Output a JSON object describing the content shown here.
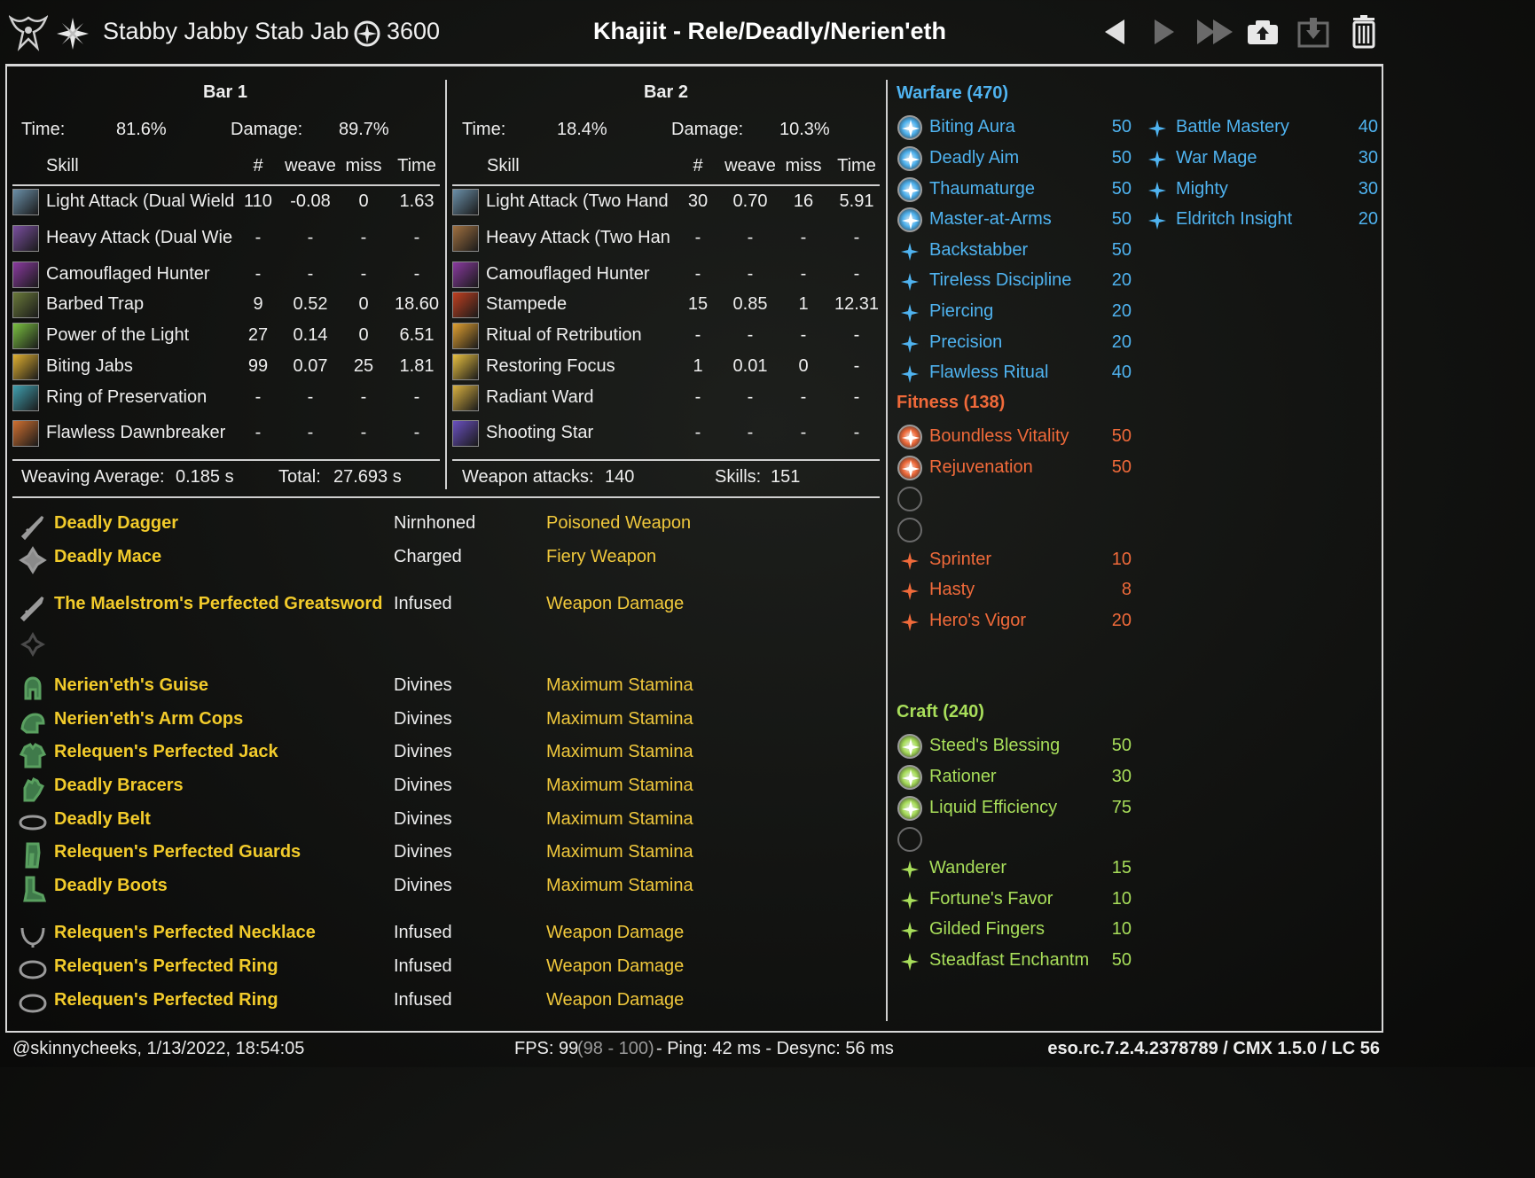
{
  "header": {
    "character_name": "Stabby Jabby Stab Jab",
    "champion_points": "3600",
    "build_title": "Khajiit - Rele/Deadly/Nerien'eth"
  },
  "colors": {
    "warfare": "#4fb3f0",
    "fitness": "#f06a3a",
    "craft": "#a8de5a",
    "gear_name": "#f2cb2b"
  },
  "bars": [
    {
      "title": "Bar 1",
      "time_label": "Time:",
      "time_value": "81.6%",
      "damage_label": "Damage:",
      "damage_value": "89.7%",
      "columns": [
        "Skill",
        "#",
        "weave",
        "miss",
        "Time"
      ],
      "skills": [
        {
          "name": "Light Attack (Dual Wield",
          "count": "110",
          "weave": "-0.08",
          "miss": "0",
          "time": "1.63",
          "icon": "dagger-icon",
          "color": "#6a8fa8"
        },
        {
          "name": "Heavy Attack (Dual Wie",
          "count": "-",
          "weave": "-",
          "miss": "-",
          "time": "-",
          "icon": "heavy-dual-icon",
          "color": "#7a4fa0"
        },
        {
          "name": "Camouflaged Hunter",
          "count": "-",
          "weave": "-",
          "miss": "-",
          "time": "-",
          "icon": "hunter-icon",
          "color": "#8a3aa0"
        },
        {
          "name": "Barbed Trap",
          "count": "9",
          "weave": "0.52",
          "miss": "0",
          "time": "18.60",
          "icon": "trap-icon",
          "color": "#6a7a3a"
        },
        {
          "name": "Power of the Light",
          "count": "27",
          "weave": "0.14",
          "miss": "0",
          "time": "6.51",
          "icon": "light-icon",
          "color": "#7ac040"
        },
        {
          "name": "Biting Jabs",
          "count": "99",
          "weave": "0.07",
          "miss": "25",
          "time": "1.81",
          "icon": "jabs-icon",
          "color": "#e0b030"
        },
        {
          "name": "Ring of Preservation",
          "count": "-",
          "weave": "-",
          "miss": "-",
          "time": "-",
          "icon": "ring-icon",
          "color": "#40a0b0"
        },
        {
          "name": "Flawless Dawnbreaker",
          "count": "-",
          "weave": "-",
          "miss": "-",
          "time": "-",
          "icon": "dawnbreaker-icon",
          "color": "#d07030"
        }
      ],
      "summary_left_label": "Weaving Average:",
      "summary_left_value": "0.185 s",
      "summary_right_label": "Total:",
      "summary_right_value": "27.693 s"
    },
    {
      "title": "Bar 2",
      "time_label": "Time:",
      "time_value": "18.4%",
      "damage_label": "Damage:",
      "damage_value": "10.3%",
      "columns": [
        "Skill",
        "#",
        "weave",
        "miss",
        "Time"
      ],
      "skills": [
        {
          "name": "Light Attack (Two Hand",
          "count": "30",
          "weave": "0.70",
          "miss": "16",
          "time": "5.91",
          "icon": "sword-icon",
          "color": "#6a8fa8"
        },
        {
          "name": "Heavy Attack (Two Han",
          "count": "-",
          "weave": "-",
          "miss": "-",
          "time": "-",
          "icon": "heavy-two-icon",
          "color": "#a07040"
        },
        {
          "name": "Camouflaged Hunter",
          "count": "-",
          "weave": "-",
          "miss": "-",
          "time": "-",
          "icon": "hunter-icon",
          "color": "#8a3aa0"
        },
        {
          "name": "Stampede",
          "count": "15",
          "weave": "0.85",
          "miss": "1",
          "time": "12.31",
          "icon": "stampede-icon",
          "color": "#c04020"
        },
        {
          "name": "Ritual of Retribution",
          "count": "-",
          "weave": "-",
          "miss": "-",
          "time": "-",
          "icon": "ritual-icon",
          "color": "#e0a030"
        },
        {
          "name": "Restoring Focus",
          "count": "1",
          "weave": "0.01",
          "miss": "0",
          "time": "-",
          "icon": "focus-icon",
          "color": "#e8c040"
        },
        {
          "name": "Radiant Ward",
          "count": "-",
          "weave": "-",
          "miss": "-",
          "time": "-",
          "icon": "ward-icon",
          "color": "#d8b040"
        },
        {
          "name": "Shooting Star",
          "count": "-",
          "weave": "-",
          "miss": "-",
          "time": "-",
          "icon": "star-icon",
          "color": "#6a50c0"
        }
      ],
      "summary_left_label": "Weapon attacks:",
      "summary_left_value": "140",
      "summary_right_label": "Skills:",
      "summary_right_value": "151"
    }
  ],
  "gear": [
    {
      "name": "Deadly Dagger",
      "trait": "Nirnhoned",
      "enchant": "Poisoned Weapon",
      "icon": "dagger-icon"
    },
    {
      "name": "Deadly Mace",
      "trait": "Charged",
      "enchant": "Fiery Weapon",
      "icon": "mace-icon"
    },
    {
      "name": "The Maelstrom's Perfected Greatsword",
      "trait": "Infused",
      "enchant": "Weapon Damage",
      "icon": "greatsword-icon"
    },
    {
      "name": "",
      "trait": "",
      "enchant": "",
      "icon": "empty-offhand-icon"
    },
    {
      "name": "Nerien'eth's Guise",
      "trait": "Divines",
      "enchant": "Maximum Stamina",
      "icon": "helmet-icon"
    },
    {
      "name": "Nerien'eth's Arm Cops",
      "trait": "Divines",
      "enchant": "Maximum Stamina",
      "icon": "shoulder-icon"
    },
    {
      "name": "Relequen's Perfected Jack",
      "trait": "Divines",
      "enchant": "Maximum Stamina",
      "icon": "chest-icon"
    },
    {
      "name": "Deadly Bracers",
      "trait": "Divines",
      "enchant": "Maximum Stamina",
      "icon": "gloves-icon"
    },
    {
      "name": "Deadly Belt",
      "trait": "Divines",
      "enchant": "Maximum Stamina",
      "icon": "belt-icon"
    },
    {
      "name": "Relequen's Perfected Guards",
      "trait": "Divines",
      "enchant": "Maximum Stamina",
      "icon": "legs-icon"
    },
    {
      "name": "Deadly Boots",
      "trait": "Divines",
      "enchant": "Maximum Stamina",
      "icon": "boots-icon"
    },
    {
      "name": "Relequen's Perfected Necklace",
      "trait": "Infused",
      "enchant": "Weapon Damage",
      "icon": "necklace-icon"
    },
    {
      "name": "Relequen's Perfected Ring",
      "trait": "Infused",
      "enchant": "Weapon Damage",
      "icon": "ring-icon"
    },
    {
      "name": "Relequen's Perfected Ring",
      "trait": "Infused",
      "enchant": "Weapon Damage",
      "icon": "ring-icon"
    }
  ],
  "champion": {
    "warfare": {
      "title": "Warfare (470)",
      "slotted": [
        {
          "name": "Biting Aura",
          "value": "50"
        },
        {
          "name": "Deadly Aim",
          "value": "50"
        },
        {
          "name": "Thaumaturge",
          "value": "50"
        },
        {
          "name": "Master-at-Arms",
          "value": "50"
        }
      ],
      "passives": [
        {
          "name": "Backstabber",
          "value": "50"
        },
        {
          "name": "Tireless Discipline",
          "value": "20"
        },
        {
          "name": "Piercing",
          "value": "20"
        },
        {
          "name": "Precision",
          "value": "20"
        },
        {
          "name": "Flawless Ritual",
          "value": "40"
        }
      ],
      "extra": [
        {
          "name": "Battle Mastery",
          "value": "40"
        },
        {
          "name": "War Mage",
          "value": "30"
        },
        {
          "name": "Mighty",
          "value": "30"
        },
        {
          "name": "Eldritch Insight",
          "value": "20"
        }
      ]
    },
    "fitness": {
      "title": "Fitness (138)",
      "slotted": [
        {
          "name": "Boundless Vitality",
          "value": "50"
        },
        {
          "name": "Rejuvenation",
          "value": "50"
        },
        {
          "name": "",
          "value": ""
        },
        {
          "name": "",
          "value": ""
        }
      ],
      "passives": [
        {
          "name": "Sprinter",
          "value": "10"
        },
        {
          "name": "Hasty",
          "value": "8"
        },
        {
          "name": "Hero's Vigor",
          "value": "20"
        }
      ]
    },
    "craft": {
      "title": "Craft (240)",
      "slotted": [
        {
          "name": "Steed's Blessing",
          "value": "50"
        },
        {
          "name": "Rationer",
          "value": "30"
        },
        {
          "name": "Liquid Efficiency",
          "value": "75"
        },
        {
          "name": "",
          "value": ""
        }
      ],
      "passives": [
        {
          "name": "Wanderer",
          "value": "15"
        },
        {
          "name": "Fortune's Favor",
          "value": "10"
        },
        {
          "name": "Gilded Fingers",
          "value": "10"
        },
        {
          "name": "Steadfast Enchantm",
          "value": "50"
        }
      ]
    }
  },
  "footer": {
    "user_date": "@skinnycheeks, 1/13/2022, 18:54:05",
    "fps_label": "FPS: 99",
    "fps_range": "(98 - 100)",
    "ping": "- Ping: 42 ms - Desync: 56 ms",
    "version": "eso.rc.7.2.4.2378789 / CMX 1.5.0 / LC 56"
  }
}
